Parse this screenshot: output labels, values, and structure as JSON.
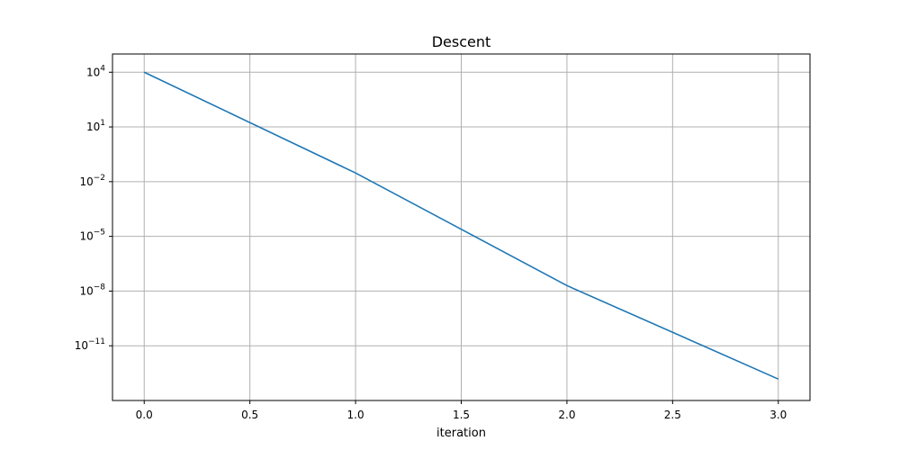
{
  "chart_data": {
    "type": "line",
    "title": "Descent",
    "xlabel": "iteration",
    "ylabel": "",
    "x_scale": "linear",
    "y_scale": "log",
    "xlim": [
      -0.15,
      3.15
    ],
    "ylim": [
      1e-14,
      100000.0
    ],
    "grid": true,
    "x_ticks": [
      0.0,
      0.5,
      1.0,
      1.5,
      2.0,
      2.5,
      3.0
    ],
    "x_tick_labels": [
      "0.0",
      "0.5",
      "1.0",
      "1.5",
      "2.0",
      "2.5",
      "3.0"
    ],
    "y_ticks": [
      10000.0,
      10.0,
      0.01,
      1e-05,
      1e-08,
      1e-11
    ],
    "y_tick_labels": [
      {
        "base": "10",
        "exp": "4"
      },
      {
        "base": "10",
        "exp": "1"
      },
      {
        "base": "10",
        "exp": "−2"
      },
      {
        "base": "10",
        "exp": "−5"
      },
      {
        "base": "10",
        "exp": "−8"
      },
      {
        "base": "10",
        "exp": "−11"
      }
    ],
    "series": [
      {
        "color": "#1f77b4",
        "x": [
          0,
          1,
          2,
          3
        ],
        "y": [
          10000,
          0.03,
          2e-08,
          1.5e-13
        ]
      }
    ]
  }
}
